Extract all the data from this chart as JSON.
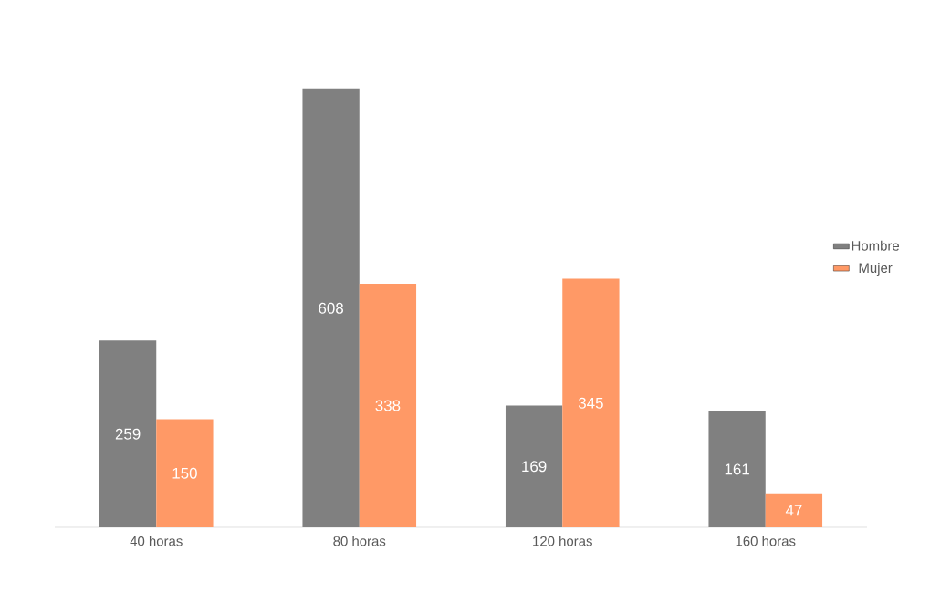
{
  "chart_data": {
    "type": "bar",
    "categories": [
      "40 horas",
      "80 horas",
      "120 horas",
      "160 horas"
    ],
    "series": [
      {
        "name": "Hombre",
        "color": "#808080",
        "values": [
          259,
          608,
          169,
          161
        ]
      },
      {
        "name": "Mujer",
        "color": "#ff9966",
        "values": [
          150,
          338,
          345,
          47
        ]
      }
    ],
    "data_labels": true,
    "legend": "right"
  }
}
